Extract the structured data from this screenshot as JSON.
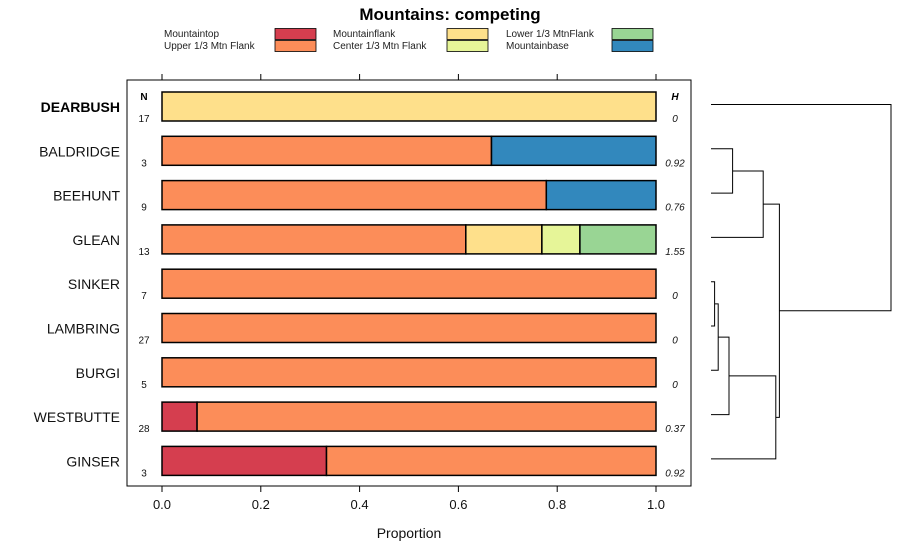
{
  "chart_data": {
    "type": "bar",
    "stacked": true,
    "orientation": "horizontal",
    "title": "Mountains: competing",
    "xlabel": "Proportion",
    "xlim": [
      0,
      1
    ],
    "xticks": [
      "0.0",
      "0.2",
      "0.4",
      "0.6",
      "0.8",
      "1.0"
    ],
    "n_header": "N",
    "h_header": "H",
    "legend": [
      {
        "name": "Mountaintop",
        "color": "#d53e4f"
      },
      {
        "name": "Upper 1/3 Mtn Flank",
        "color": "#fc8d59"
      },
      {
        "name": "Mountainflank",
        "color": "#fee08b"
      },
      {
        "name": "Center 1/3 Mtn Flank",
        "color": "#e6f598"
      },
      {
        "name": "Lower 1/3 MtnFlank",
        "color": "#99d594"
      },
      {
        "name": "Mountainbase",
        "color": "#3288bd"
      }
    ],
    "rows": [
      {
        "label": "DEARBUSH",
        "bold": true,
        "n": "17",
        "h": "0",
        "segments": [
          {
            "category": "Mountainflank",
            "value": 1.0
          }
        ]
      },
      {
        "label": "BALDRIDGE",
        "bold": false,
        "n": "3",
        "h": "0.92",
        "segments": [
          {
            "category": "Upper 1/3 Mtn Flank",
            "value": 0.667
          },
          {
            "category": "Mountainbase",
            "value": 0.333
          }
        ]
      },
      {
        "label": "BEEHUNT",
        "bold": false,
        "n": "9",
        "h": "0.76",
        "segments": [
          {
            "category": "Upper 1/3 Mtn Flank",
            "value": 0.778
          },
          {
            "category": "Mountainbase",
            "value": 0.222
          }
        ]
      },
      {
        "label": "GLEAN",
        "bold": false,
        "n": "13",
        "h": "1.55",
        "segments": [
          {
            "category": "Upper 1/3 Mtn Flank",
            "value": 0.615
          },
          {
            "category": "Mountainflank",
            "value": 0.154
          },
          {
            "category": "Center 1/3 Mtn Flank",
            "value": 0.077
          },
          {
            "category": "Lower 1/3 MtnFlank",
            "value": 0.154
          }
        ]
      },
      {
        "label": "SINKER",
        "bold": false,
        "n": "7",
        "h": "0",
        "segments": [
          {
            "category": "Upper 1/3 Mtn Flank",
            "value": 1.0
          }
        ]
      },
      {
        "label": "LAMBRING",
        "bold": false,
        "n": "27",
        "h": "0",
        "segments": [
          {
            "category": "Upper 1/3 Mtn Flank",
            "value": 1.0
          }
        ]
      },
      {
        "label": "BURGI",
        "bold": false,
        "n": "5",
        "h": "0",
        "segments": [
          {
            "category": "Upper 1/3 Mtn Flank",
            "value": 1.0
          }
        ]
      },
      {
        "label": "WESTBUTTE",
        "bold": false,
        "n": "28",
        "h": "0.37",
        "segments": [
          {
            "category": "Mountaintop",
            "value": 0.071
          },
          {
            "category": "Upper 1/3 Mtn Flank",
            "value": 0.929
          }
        ]
      },
      {
        "label": "GINSER",
        "bold": false,
        "n": "3",
        "h": "0.92",
        "segments": [
          {
            "category": "Mountaintop",
            "value": 0.333
          },
          {
            "category": "Upper 1/3 Mtn Flank",
            "value": 0.667
          }
        ]
      }
    ],
    "dendrogram": {
      "leaf_order": [
        "DEARBUSH",
        "BALDRIDGE",
        "BEEHUNT",
        "GLEAN",
        "SINKER",
        "LAMBRING",
        "BURGI",
        "WESTBUTTE",
        "GINSER"
      ],
      "merges": [
        {
          "a": "SINKER",
          "b": "LAMBRING",
          "height": 0.02
        },
        {
          "a": "SINKER+LAMBRING",
          "b": "BURGI",
          "height": 0.04
        },
        {
          "a": "BALDRIDGE",
          "b": "BEEHUNT",
          "height": 0.12
        },
        {
          "a": "SINKER+LAMBRING+BURGI",
          "b": "WESTBUTTE",
          "height": 0.1
        },
        {
          "a": "BALDRIDGE+BEEHUNT",
          "b": "GLEAN",
          "height": 0.29
        },
        {
          "a": "SINKER+LAMBRING+BURGI+WESTBUTTE",
          "b": "GINSER",
          "height": 0.36
        },
        {
          "a": "BALDRIDGE+BEEHUNT+GLEAN",
          "b": "SINKER+LAMBRING+BURGI+WESTBUTTE+GINSER",
          "height": 0.38
        },
        {
          "a": "DEARBUSH",
          "b": "BALDRIDGE+BEEHUNT+GLEAN+SINKER+LAMBRING+BURGI+WESTBUTTE+GINSER",
          "height": 1.0
        }
      ]
    }
  }
}
